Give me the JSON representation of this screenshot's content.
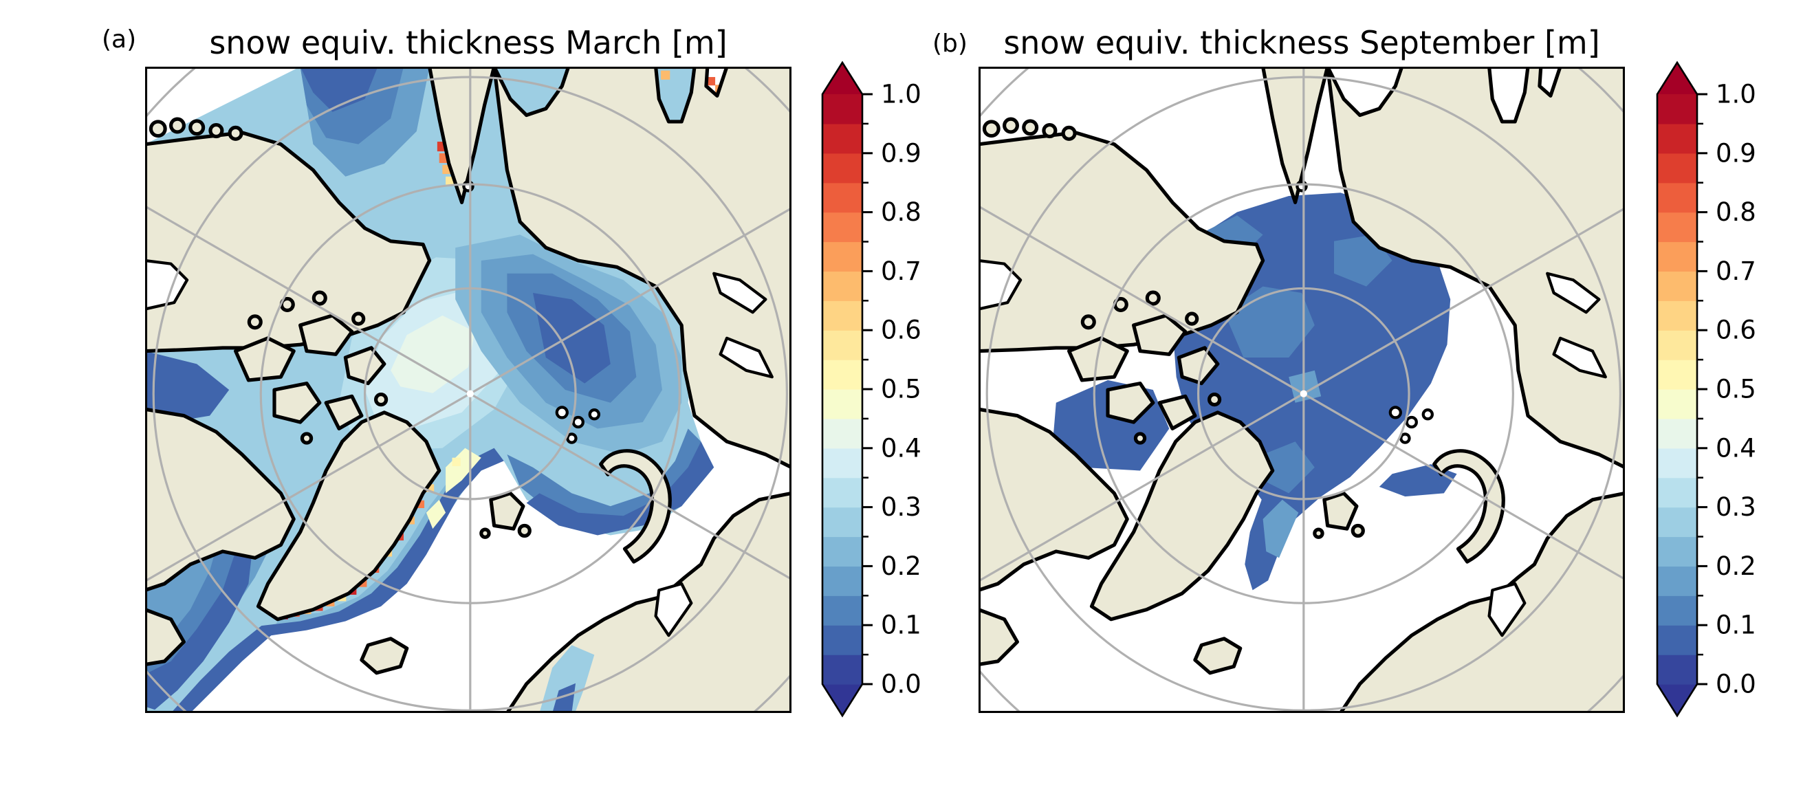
{
  "page": {
    "background": "#ffffff"
  },
  "figure": {
    "panels": [
      {
        "id": "a",
        "label": "(a)",
        "title": "snow equiv. thickness March [m]"
      },
      {
        "id": "b",
        "label": "(b)",
        "title": "snow equiv. thickness September [m]"
      }
    ],
    "map_colors": {
      "land": "#ebe9d6",
      "ocean": "#ffffff",
      "coastline": "#000000",
      "graticule": "#b0b0b0",
      "frame": "#000000",
      "pole_dot": "#ffffff"
    },
    "graticule": {
      "parallels_deg": [
        80,
        70,
        60,
        50
      ],
      "meridian_spacing_deg": 60
    },
    "colorbar": {
      "vmin": 0.0,
      "vmax": 1.0,
      "units": "m",
      "major_tick_values": [
        0.0,
        0.1,
        0.2,
        0.3,
        0.4,
        0.5,
        0.6,
        0.7,
        0.8,
        0.9,
        1.0
      ],
      "tick_labels_bottom_to_top": [
        "0.0",
        "0.1",
        "0.2",
        "0.3",
        "0.4",
        "0.5",
        "0.6",
        "0.7",
        "0.8",
        "0.9",
        "1.0"
      ],
      "minor_tick_step": 0.05,
      "bin_width": 0.05,
      "bin_colors_low_to_high": [
        "#36469d",
        "#4065ac",
        "#5183bb",
        "#689fca",
        "#82b8d7",
        "#9dcee3",
        "#b8e0ed",
        "#d3edf4",
        "#e8f6ea",
        "#f7fccd",
        "#fff7b3",
        "#fee89c",
        "#fed484",
        "#fdbb6d",
        "#fb9e5a",
        "#f67d4b",
        "#ed5e3c",
        "#de3f2e",
        "#cb2427",
        "#b20c26"
      ],
      "under_arrow_color": "#313695",
      "over_arrow_color": "#a50026",
      "colormap_name": "RdYlBu_r (discrete, extended both ends)"
    }
  },
  "chart_data": [
    {
      "type": "heatmap",
      "title": "snow equiv. thickness March [m]",
      "panel_label": "(a)",
      "projection": "north polar stereographic (pole at panel center, vertical central meridian, parallels at 80/70/60/50 N, meridians every 60 deg)",
      "variable": "snow equivalent thickness",
      "units": "m",
      "month": "March",
      "colorbar_range": [
        0.0,
        1.0
      ],
      "colorbar_ticks": [
        0.0,
        0.1,
        0.2,
        0.3,
        0.4,
        0.5,
        0.6,
        0.7,
        0.8,
        0.9,
        1.0
      ],
      "colormap": "RdYlBu_r, 0.05-wide discrete bins, triangular extensions below 0.0 and above 1.0",
      "approx_values": {
        "central_arctic_pole_region": "0.30-0.45 (palest blues, lightest patch slightly Canada-side of pole)",
        "canadian_archipelago_channels": "0.25-0.40 with white (no-data/open) pockets",
        "east_siberian_laptev_coast": "0.05-0.20 (dark blue band along Siberian coast)",
        "kara_sea_interior": "0.05-0.15 (darkest blue pocket center-right)",
        "barents_sea_ice_edge": "0.00-0.15 dark blue rim, open white water south of it",
        "baffin_bay_davis_strait_tongue": "0.05-0.20 dark blue tongue to bottom-left",
        "east_greenland_fram_strait": "0.20-0.45 with pale yellow streaks 0.45-0.55",
        "southeast_greenland_coast_spots": "0.5-1.0 (orange/red cells along coast)",
        "taymyr_cape_flank_spots": "0.5-0.9",
        "ob_estuary_spots": "0.55-0.85",
        "gulf_of_bothnia": "0.05-0.25",
        "open_north_atlantic_and_pacific_corners": "ice free (white)"
      }
    },
    {
      "type": "heatmap",
      "title": "snow equiv. thickness September [m]",
      "panel_label": "(b)",
      "projection": "north polar stereographic (same layout as panel a)",
      "variable": "snow equivalent thickness",
      "units": "m",
      "month": "September",
      "colorbar_range": [
        0.0,
        1.0
      ],
      "colorbar_ticks": [
        0.0,
        0.1,
        0.2,
        0.3,
        0.4,
        0.5,
        0.6,
        0.7,
        0.8,
        0.9,
        1.0
      ],
      "colormap": "RdYlBu_r, 0.05-wide discrete bins, triangular extensions below 0.0 and above 1.0",
      "approx_values": {
        "central_arctic_pack": "0.05-0.10 (single medium-dark blue blob around the pole)",
        "lighter_patches_within_pack": "0.10-0.20",
        "canadian_archipelago_channels": "0.05-0.10",
        "east_greenland_tongue": "0.05-0.15",
        "novaya_zemlya_north_lobe": "0.05-0.10",
        "everywhere_else_ocean": "ice free (white)",
        "no_warm_colors_present": "values never exceed ~0.2"
      }
    }
  ]
}
